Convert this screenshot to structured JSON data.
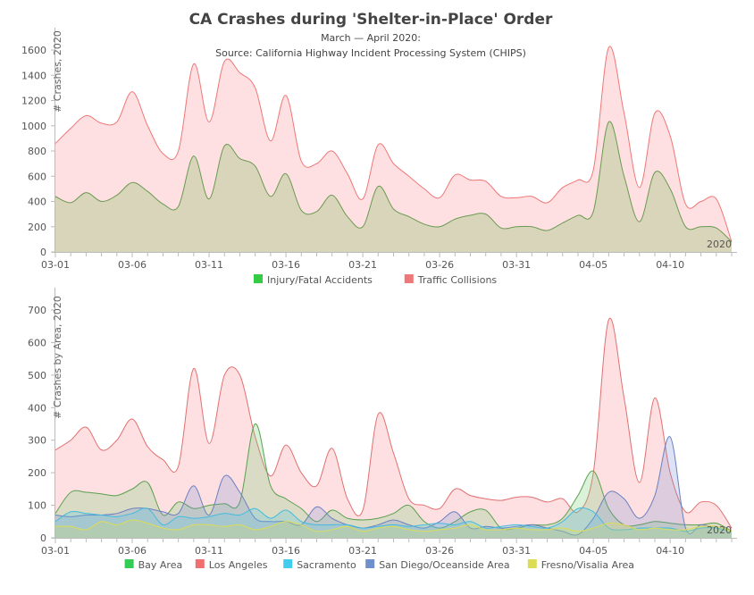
{
  "title": "CA Crashes during 'Shelter-in-Place' Order",
  "subtitle": "March — April 2020:",
  "source": "Source: California Highway Incident Processing System (CHIPS)",
  "chart_data": [
    {
      "type": "area",
      "ylabel": "# Crashes, 2020",
      "year_label": "2020",
      "ylim": [
        0,
        1600
      ],
      "yticks": [
        0,
        200,
        400,
        600,
        800,
        1000,
        1200,
        1400,
        1600
      ],
      "x_start": "03-01",
      "x_tick_labels": [
        "03-01",
        "03-06",
        "03-11",
        "03-16",
        "03-21",
        "03-26",
        "03-31",
        "04-05",
        "04-10"
      ],
      "legend_position": "bottom",
      "series": [
        {
          "name": "Traffic Collisions",
          "color": "#ee7777",
          "fill": "rgba(255,180,185,0.42)",
          "values": [
            860,
            980,
            1080,
            1020,
            1030,
            1270,
            1000,
            780,
            800,
            1490,
            1030,
            1510,
            1420,
            1300,
            880,
            1240,
            720,
            700,
            800,
            620,
            420,
            850,
            700,
            600,
            500,
            430,
            610,
            570,
            560,
            440,
            430,
            440,
            390,
            510,
            570,
            650,
            1620,
            1100,
            510,
            1100,
            920,
            380,
            400,
            420,
            80
          ]
        },
        {
          "name": "Injury/Fatal Accidents",
          "color": "#33cc44",
          "stroke": "#6a9a50",
          "fill": "rgba(170,200,140,0.45)",
          "values": [
            440,
            390,
            470,
            400,
            450,
            550,
            480,
            380,
            360,
            760,
            420,
            840,
            740,
            680,
            440,
            620,
            330,
            320,
            450,
            280,
            200,
            520,
            340,
            280,
            220,
            200,
            260,
            290,
            300,
            190,
            200,
            200,
            170,
            230,
            290,
            320,
            1030,
            600,
            240,
            630,
            500,
            200,
            200,
            190,
            80
          ]
        }
      ],
      "legend_order": [
        "Injury/Fatal Accidents",
        "Traffic Collisions"
      ]
    },
    {
      "type": "area",
      "ylabel": "# Crashes by Area, 2020",
      "year_label": "2020",
      "ylim": [
        0,
        700
      ],
      "yticks": [
        0,
        100,
        200,
        300,
        400,
        500,
        600,
        700
      ],
      "x_start": "03-01",
      "x_tick_labels": [
        "03-01",
        "03-06",
        "03-11",
        "03-16",
        "03-21",
        "03-26",
        "03-31",
        "04-05",
        "04-10"
      ],
      "legend_position": "bottom",
      "series": [
        {
          "name": "Los Angeles",
          "color": "#f07070",
          "stroke": "#e07070",
          "fill": "rgba(255,180,185,0.42)",
          "values": [
            270,
            300,
            340,
            270,
            300,
            365,
            280,
            240,
            220,
            520,
            290,
            500,
            500,
            310,
            190,
            285,
            200,
            160,
            275,
            120,
            85,
            380,
            260,
            120,
            100,
            90,
            150,
            130,
            120,
            115,
            125,
            125,
            110,
            120,
            80,
            200,
            670,
            430,
            170,
            430,
            200,
            80,
            110,
            100,
            30
          ]
        },
        {
          "name": "Bay Area",
          "color": "#33cc55",
          "stroke": "#5aa050",
          "fill": "rgba(120,210,120,0.28)",
          "values": [
            75,
            140,
            140,
            135,
            130,
            150,
            170,
            70,
            110,
            90,
            100,
            105,
            110,
            350,
            160,
            120,
            90,
            50,
            85,
            60,
            55,
            60,
            75,
            100,
            50,
            30,
            50,
            80,
            85,
            30,
            30,
            40,
            40,
            60,
            130,
            205,
            90,
            40,
            40,
            50,
            45,
            40,
            40,
            45,
            20
          ]
        },
        {
          "name": "San Diego/Oceanside Area",
          "color": "#7090cc",
          "stroke": "#6a80c0",
          "fill": "rgba(120,140,210,0.25)",
          "values": [
            70,
            65,
            70,
            70,
            75,
            90,
            90,
            80,
            75,
            160,
            70,
            190,
            140,
            60,
            50,
            50,
            40,
            95,
            60,
            40,
            30,
            40,
            55,
            40,
            30,
            50,
            80,
            30,
            35,
            30,
            35,
            40,
            30,
            20,
            10,
            60,
            140,
            120,
            60,
            130,
            310,
            30,
            40,
            30,
            20
          ]
        },
        {
          "name": "Sacramento",
          "color": "#44ccee",
          "stroke": "#44bbdd",
          "fill": "rgba(80,200,230,0.25)",
          "values": [
            50,
            80,
            75,
            70,
            65,
            75,
            90,
            40,
            65,
            60,
            65,
            75,
            70,
            90,
            60,
            85,
            50,
            40,
            40,
            40,
            30,
            35,
            40,
            35,
            40,
            45,
            40,
            50,
            30,
            35,
            40,
            35,
            30,
            50,
            90,
            80,
            30,
            25,
            30,
            30,
            30,
            20,
            30,
            30,
            20
          ]
        },
        {
          "name": "Fresno/Visalia Area",
          "color": "#dddd55",
          "stroke": "#dddd55",
          "fill": "rgba(220,220,90,0.25)",
          "values": [
            35,
            35,
            25,
            50,
            40,
            55,
            45,
            30,
            25,
            40,
            40,
            35,
            40,
            25,
            35,
            50,
            40,
            20,
            25,
            35,
            20,
            30,
            35,
            25,
            20,
            25,
            30,
            40,
            25,
            25,
            30,
            25,
            25,
            30,
            20,
            30,
            45,
            40,
            25,
            30,
            25,
            25,
            35,
            35,
            20
          ]
        }
      ],
      "legend_order": [
        "Bay Area",
        "Los Angeles",
        "Sacramento",
        "San Diego/Oceanside Area",
        "Fresno/Visalia Area"
      ]
    }
  ]
}
